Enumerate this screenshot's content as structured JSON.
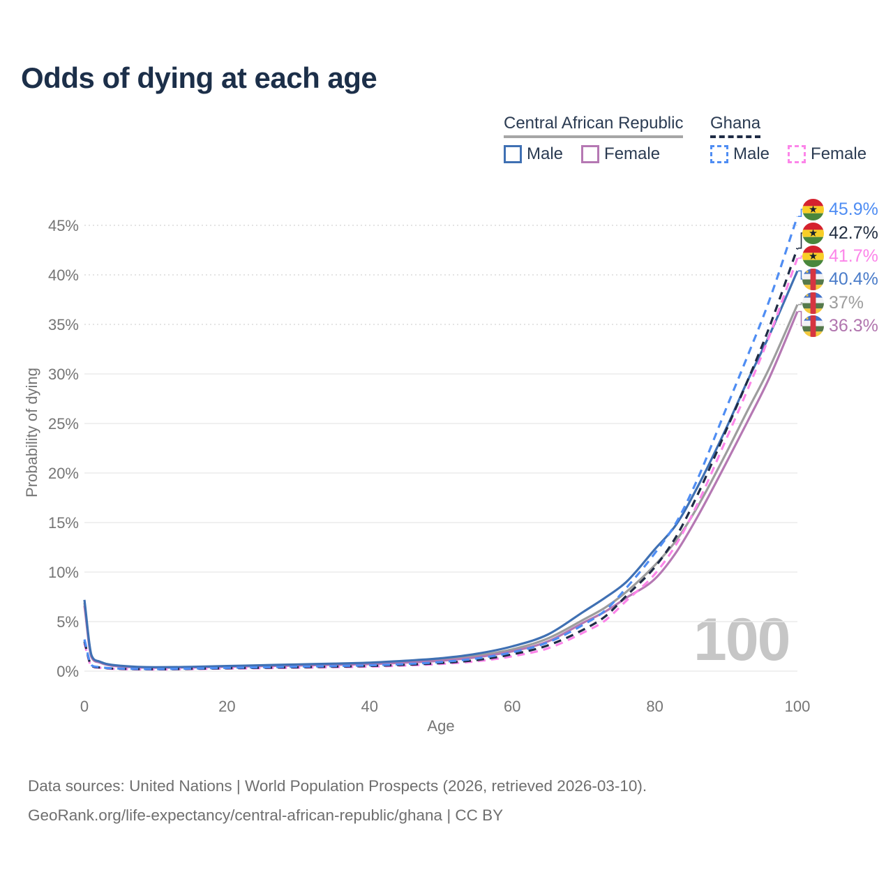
{
  "title": "Odds of dying at each age",
  "watermark": "100",
  "legend": {
    "groups": [
      {
        "label": "Central African Republic",
        "style": "solid",
        "color": "#a6a6a6",
        "items": [
          {
            "label": "Male",
            "color": "#3f70b3"
          },
          {
            "label": "Female",
            "color": "#b578b3"
          }
        ]
      },
      {
        "label": "Ghana",
        "style": "dashed",
        "color": "#1f2c45",
        "items": [
          {
            "label": "Male",
            "color": "#4f8df3"
          },
          {
            "label": "Female",
            "color": "#fc85e9"
          }
        ]
      }
    ]
  },
  "chart_data": {
    "type": "line",
    "title": "Odds of dying at each age",
    "xlabel": "Age",
    "ylabel": "Probability of dying",
    "xlim": [
      0,
      100
    ],
    "ylim_percent": [
      0,
      47
    ],
    "xticks": [
      0,
      20,
      40,
      60,
      80,
      100
    ],
    "yticks": [
      "0%",
      "5%",
      "10%",
      "15%",
      "20%",
      "25%",
      "30%",
      "35%",
      "40%",
      "45%"
    ],
    "grid": "horizontal",
    "legend_position": "top-right",
    "x_ages": [
      0,
      1,
      2,
      3,
      5,
      10,
      15,
      20,
      25,
      30,
      35,
      40,
      45,
      50,
      55,
      60,
      65,
      70,
      73,
      76,
      80,
      83,
      86,
      90,
      93,
      96,
      100
    ],
    "series": [
      {
        "id": "car-both",
        "name": "Central African Republic (both sexes)",
        "color": "#9d9d9d",
        "dash": false,
        "values": [
          6.9,
          1.5,
          0.95,
          0.7,
          0.5,
          0.37,
          0.4,
          0.48,
          0.55,
          0.62,
          0.7,
          0.78,
          0.95,
          1.15,
          1.55,
          2.2,
          3.3,
          5.2,
          6.4,
          8.0,
          10.7,
          13.2,
          16.6,
          22.0,
          26.3,
          30.5,
          37.0
        ]
      },
      {
        "id": "car-female",
        "name": "Central African Republic Female",
        "color": "#b578b3",
        "dash": false,
        "values": [
          6.6,
          1.4,
          0.9,
          0.66,
          0.47,
          0.35,
          0.38,
          0.45,
          0.51,
          0.57,
          0.64,
          0.71,
          0.86,
          1.05,
          1.4,
          2.0,
          3.0,
          4.9,
          6.0,
          7.4,
          9.3,
          12.0,
          15.6,
          21.0,
          25.2,
          29.5,
          36.3
        ]
      },
      {
        "id": "car-male",
        "name": "Central African Republic Male",
        "color": "#3f70b3",
        "dash": false,
        "values": [
          7.2,
          1.6,
          1.0,
          0.75,
          0.55,
          0.4,
          0.43,
          0.52,
          0.6,
          0.68,
          0.76,
          0.86,
          1.05,
          1.3,
          1.75,
          2.5,
          3.7,
          6.0,
          7.4,
          9.0,
          12.3,
          14.8,
          18.6,
          24.5,
          29.3,
          33.8,
          40.4
        ]
      },
      {
        "id": "ghana-female",
        "name": "Ghana Female",
        "color": "#fc85e9",
        "dash": true,
        "values": [
          2.8,
          0.5,
          0.35,
          0.27,
          0.21,
          0.17,
          0.21,
          0.26,
          0.3,
          0.35,
          0.4,
          0.46,
          0.57,
          0.73,
          1.0,
          1.5,
          2.3,
          3.9,
          5.1,
          7.1,
          9.8,
          12.8,
          16.9,
          23.4,
          28.4,
          33.7,
          41.7
        ]
      },
      {
        "id": "ghana-both",
        "name": "Ghana (both sexes)",
        "color": "#1f2c45",
        "dash": true,
        "values": [
          3.0,
          0.55,
          0.38,
          0.3,
          0.23,
          0.19,
          0.23,
          0.29,
          0.34,
          0.39,
          0.45,
          0.52,
          0.64,
          0.82,
          1.12,
          1.7,
          2.6,
          4.2,
          5.5,
          7.6,
          10.5,
          13.6,
          17.8,
          24.3,
          29.3,
          34.6,
          42.7
        ]
      },
      {
        "id": "ghana-male",
        "name": "Ghana Male",
        "color": "#4f8df3",
        "dash": true,
        "values": [
          3.2,
          0.6,
          0.42,
          0.33,
          0.26,
          0.21,
          0.26,
          0.33,
          0.39,
          0.45,
          0.51,
          0.59,
          0.72,
          0.92,
          1.28,
          1.9,
          2.9,
          4.7,
          6.1,
          8.4,
          11.9,
          15.0,
          19.4,
          26.5,
          31.8,
          37.3,
          45.9
        ]
      }
    ],
    "end_labels": [
      {
        "flag": "ghana",
        "series": "ghana-male",
        "text": "45.9%",
        "value": 45.9,
        "color": "#4f8df3"
      },
      {
        "flag": "ghana",
        "series": "ghana-both",
        "text": "42.7%",
        "value": 42.7,
        "color": "#232f42"
      },
      {
        "flag": "ghana",
        "series": "ghana-female",
        "text": "41.7%",
        "value": 41.7,
        "color": "#fc85e9"
      },
      {
        "flag": "car",
        "series": "car-male",
        "text": "40.4%",
        "value": 40.4,
        "color": "#4a7cc9"
      },
      {
        "flag": "car",
        "series": "car-both",
        "text": "37%",
        "value": 37.0,
        "color": "#9d9d9d"
      },
      {
        "flag": "car",
        "series": "car-female",
        "text": "36.3%",
        "value": 36.3,
        "color": "#b175ae"
      }
    ]
  },
  "footer": {
    "line1": "Data sources: United Nations | World Population Prospects (2026, retrieved 2026-03-10).",
    "line2": "GeoRank.org/life-expectancy/central-african-republic/ghana | CC BY"
  }
}
